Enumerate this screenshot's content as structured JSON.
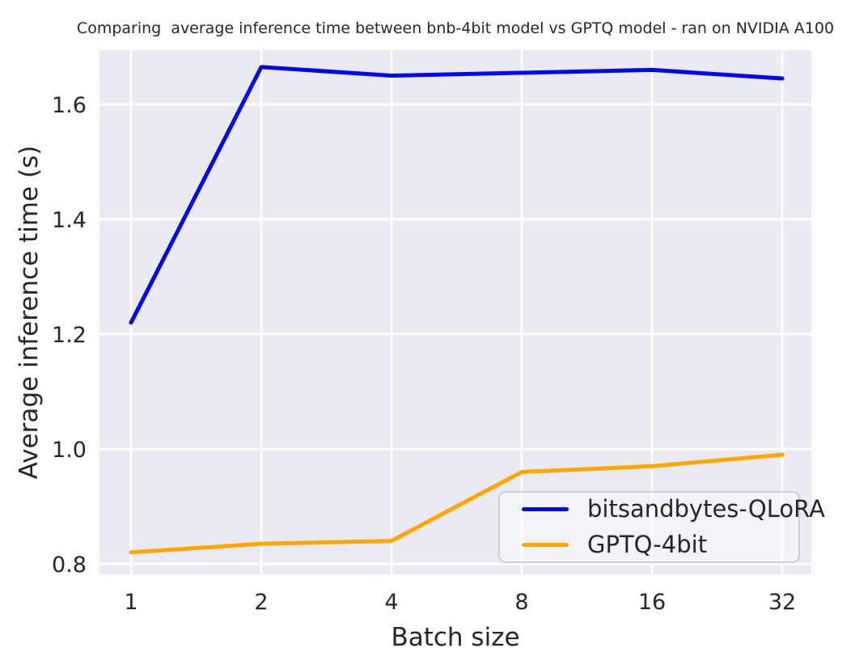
{
  "title": "Comparing  average inference time between bnb-4bit model vs GPTQ model - ran on NVIDIA A100",
  "chart_data": {
    "type": "line",
    "title": "Comparing  average inference time between bnb-4bit model vs GPTQ model - ran on NVIDIA A100",
    "xlabel": "Batch size",
    "ylabel": "Average inference time (s)",
    "categories": [
      "1",
      "2",
      "4",
      "8",
      "16",
      "32"
    ],
    "series": [
      {
        "name": "bitsandbytes-QLoRA",
        "color": "#0505f0",
        "values": [
          1.22,
          1.665,
          1.65,
          1.655,
          1.66,
          1.645
        ]
      },
      {
        "name": "GPTQ-4bit",
        "color": "#ffa500",
        "values": [
          0.82,
          0.835,
          0.84,
          0.96,
          0.97,
          0.99
        ]
      }
    ],
    "yticks": [
      "0.8",
      "1.0",
      "1.2",
      "1.4",
      "1.6"
    ],
    "ylim": [
      0.781,
      1.694
    ],
    "grid": true,
    "legend_position": "lower right",
    "style": {
      "plot_bg": "#eaeaf2",
      "grid_color": "#ffffff",
      "text_color": "#262626",
      "tick_font_size": 27,
      "line_width": 5
    }
  }
}
